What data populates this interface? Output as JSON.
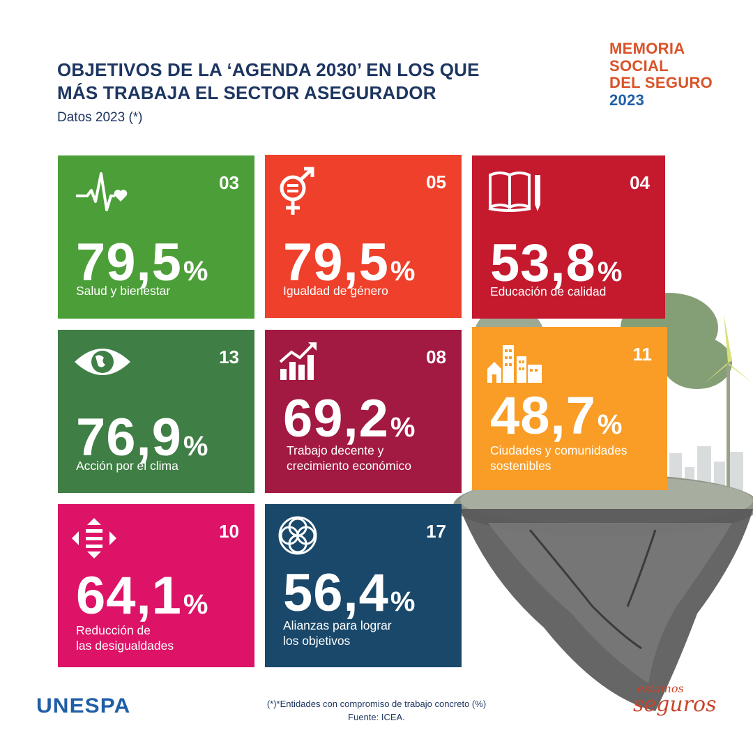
{
  "header": {
    "title_line1": "OBJETIVOS DE LA ‘AGENDA 2030’ EN LOS QUE",
    "title_line2": "MÁS TRABAJA  EL SECTOR ASEGURADOR",
    "subtitle": "Datos 2023 (*)"
  },
  "brand": {
    "line1": "MEMORIA",
    "line2": "SOCIAL",
    "line3": "DEL SEGURO",
    "year": "2023"
  },
  "colors": {
    "title": "#1d3561",
    "brand_orange": "#d9532a",
    "brand_blue": "#1f5ea8"
  },
  "cards": [
    {
      "number": "03",
      "value": "79,5",
      "unit": "%",
      "label": "Salud y bienestar",
      "color": "#4c9f38",
      "icon": "health-heartbeat-icon"
    },
    {
      "number": "05",
      "value": "79,5",
      "unit": "%",
      "label": "Igualdad de género",
      "color": "#ef402b",
      "icon": "gender-equality-icon"
    },
    {
      "number": "04",
      "value": "53,8",
      "unit": "%",
      "label": "Educación de calidad",
      "color": "#c5192d",
      "icon": "book-pencil-icon"
    },
    {
      "number": "13",
      "value": "76,9",
      "unit": "%",
      "label": "Acción por el clima",
      "color": "#3f7e44",
      "icon": "eye-globe-icon"
    },
    {
      "number": "08",
      "value": "69,2",
      "unit": "%",
      "label": "Trabajo decente y\ncrecimiento económico",
      "color": "#a21942",
      "icon": "growth-chart-icon"
    },
    {
      "number": "11",
      "value": "48,7",
      "unit": "%",
      "label": "Ciudades y comunidades\nsostenibles",
      "color": "#f99d26",
      "icon": "city-buildings-icon"
    },
    {
      "number": "10",
      "value": "64,1",
      "unit": "%",
      "label": "Reducción de\nlas desigualdades",
      "color": "#dd1367",
      "icon": "inequality-arrows-icon"
    },
    {
      "number": "17",
      "value": "56,4",
      "unit": "%",
      "label": "Alianzas para lograr\nlos objetivos",
      "color": "#19486a",
      "icon": "partnership-rings-icon"
    }
  ],
  "footer": {
    "note": "(*)*Entidades con compromiso de trabajo concreto (%)",
    "source": "Fuente: ICEA.",
    "logo": "UNESPA",
    "slogan_top": "estamos",
    "slogan_bottom": "seguros"
  }
}
